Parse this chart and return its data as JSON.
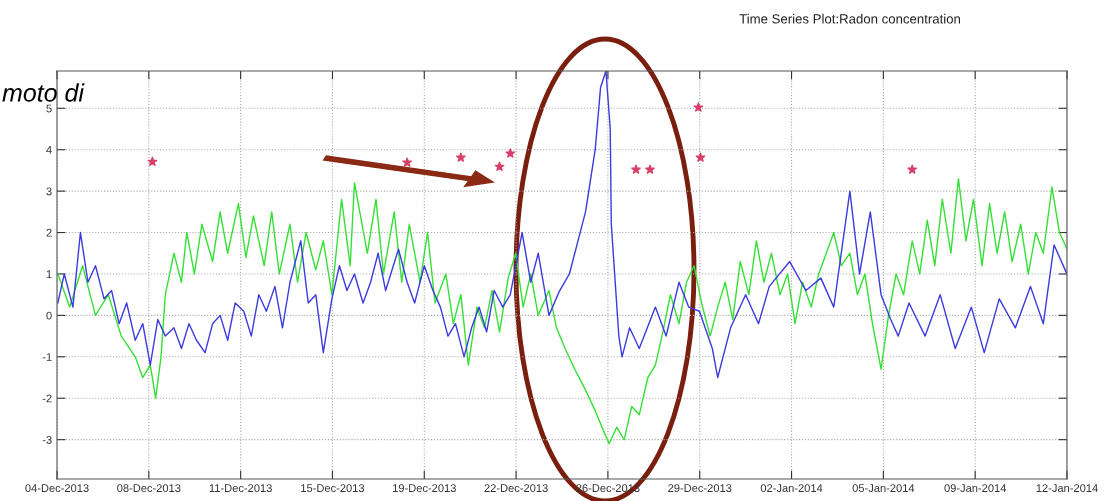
{
  "chart_data": {
    "type": "line",
    "title": "Time Series Plot:Radon concentration",
    "annotations": [
      "moto di"
    ],
    "xlim": [
      "2013-12-04T19:12",
      "2014-01-12T23:02"
    ],
    "ylim": [
      -3.95,
      5.9
    ],
    "xticks": [
      {
        "value": "2013-12-04T19:12",
        "label": "04-Dec-2013"
      },
      {
        "value": "2013-12-08T08:38",
        "label": "08-Dec-2013"
      },
      {
        "value": "2013-12-11T22:05",
        "label": "11-Dec-2013"
      },
      {
        "value": "2013-12-15T11:31",
        "label": "15-Dec-2013"
      },
      {
        "value": "2013-12-19T00:58",
        "label": "19-Dec-2013"
      },
      {
        "value": "2013-12-22T14:24",
        "label": "22-Dec-2013"
      },
      {
        "value": "2013-12-26T03:50",
        "label": "26-Dec-2013"
      },
      {
        "value": "2013-12-29T17:17",
        "label": "29-Dec-2013"
      },
      {
        "value": "2014-01-02T06:43",
        "label": "02-Jan-2014"
      },
      {
        "value": "2014-01-05T20:10",
        "label": "05-Jan-2014"
      },
      {
        "value": "2014-01-09T09:36",
        "label": "09-Jan-2014"
      },
      {
        "value": "2014-01-12T23:02",
        "label": "12-Jan-2014"
      }
    ],
    "yticks": [
      -3,
      -2,
      -1,
      0,
      1,
      2,
      3,
      4,
      5
    ],
    "grid": true,
    "line_style": "solid",
    "series": [
      {
        "color": "#33e033",
        "marker": "none",
        "x": [
          "2013-12-04T20:00",
          "2013-12-05T07:00",
          "2013-12-05T19:00",
          "2013-12-06T07:00",
          "2013-12-06T19:00",
          "2013-12-07T07:00",
          "2013-12-07T20:00",
          "2013-12-08T03:00",
          "2013-12-08T10:00",
          "2013-12-08T15:00",
          "2013-12-08T20:00",
          "2013-12-09T00:00",
          "2013-12-09T08:00",
          "2013-12-09T15:00",
          "2013-12-09T20:00",
          "2013-12-10T03:00",
          "2013-12-10T10:00",
          "2013-12-10T20:00",
          "2013-12-11T03:00",
          "2013-12-11T10:00",
          "2013-12-11T20:00",
          "2013-12-12T03:00",
          "2013-12-12T10:00",
          "2013-12-12T20:00",
          "2013-12-13T03:00",
          "2013-12-13T10:00",
          "2013-12-13T20:00",
          "2013-12-14T03:00",
          "2013-12-14T11:00",
          "2013-12-14T20:00",
          "2013-12-15T03:00",
          "2013-12-15T11:00",
          "2013-12-15T20:00",
          "2013-12-16T04:00",
          "2013-12-16T08:00",
          "2013-12-16T20:00",
          "2013-12-17T04:00",
          "2013-12-17T11:00",
          "2013-12-17T21:00",
          "2013-12-18T04:00",
          "2013-12-18T11:00",
          "2013-12-18T21:00",
          "2013-12-19T04:00",
          "2013-12-19T11:00",
          "2013-12-19T21:00",
          "2013-12-20T04:00",
          "2013-12-20T11:00",
          "2013-12-20T18:00",
          "2013-12-21T02:00",
          "2013-12-21T09:00",
          "2013-12-21T16:00",
          "2013-12-21T23:00",
          "2013-12-22T07:00",
          "2013-12-22T14:00",
          "2013-12-22T21:00",
          "2013-12-23T04:00",
          "2013-12-23T11:00",
          "2013-12-23T21:00",
          "2013-12-24T04:00",
          "2013-12-24T12:00",
          "2013-12-24T21:00",
          "2013-12-25T07:00",
          "2013-12-25T16:00",
          "2013-12-26T00:00",
          "2013-12-26T05:00",
          "2013-12-26T12:00",
          "2013-12-26T19:00",
          "2013-12-27T02:00",
          "2013-12-27T09:00",
          "2013-12-27T17:00",
          "2013-12-28T00:00",
          "2013-12-28T07:00",
          "2013-12-28T14:00",
          "2013-12-28T22:00",
          "2013-12-29T05:00",
          "2013-12-29T12:00",
          "2013-12-29T19:00",
          "2013-12-30T03:00",
          "2013-12-30T10:00",
          "2013-12-30T17:00",
          "2013-12-31T00:00",
          "2013-12-31T07:00",
          "2013-12-31T15:00",
          "2013-12-31T22:00",
          "2014-01-01T05:00",
          "2014-01-01T12:00",
          "2014-01-01T20:00",
          "2014-01-02T03:00",
          "2014-01-02T10:00",
          "2014-01-02T17:00",
          "2014-01-03T01:00",
          "2014-01-03T08:00",
          "2014-01-03T15:00",
          "2014-01-03T22:00",
          "2014-01-04T05:00",
          "2014-01-04T13:00",
          "2014-01-04T20:00",
          "2014-01-05T03:00",
          "2014-01-05T10:00",
          "2014-01-05T18:00",
          "2014-01-06T01:00",
          "2014-01-06T08:00",
          "2014-01-06T15:00",
          "2014-01-06T23:00",
          "2014-01-07T06:00",
          "2014-01-07T13:00",
          "2014-01-07T20:00",
          "2014-01-08T03:00",
          "2014-01-08T11:00",
          "2014-01-08T18:00",
          "2014-01-09T01:00",
          "2014-01-09T08:00",
          "2014-01-09T16:00",
          "2014-01-09T23:00",
          "2014-01-10T06:00",
          "2014-01-10T13:00",
          "2014-01-10T20:00",
          "2014-01-11T04:00",
          "2014-01-11T11:00",
          "2014-01-11T18:00",
          "2014-01-12T01:00",
          "2014-01-12T09:00",
          "2014-01-12T16:00",
          "2014-01-12T23:00"
        ],
        "values": [
          1.0,
          0.2,
          1.2,
          0.0,
          0.5,
          -0.5,
          -1.0,
          -1.5,
          -1.2,
          -2.0,
          -1.0,
          0.5,
          1.5,
          0.8,
          2.0,
          1.0,
          2.2,
          1.3,
          2.5,
          1.5,
          2.7,
          1.4,
          2.4,
          1.2,
          2.5,
          1.0,
          2.2,
          0.8,
          2.0,
          1.1,
          1.8,
          0.5,
          2.8,
          1.2,
          3.2,
          1.5,
          2.8,
          1.0,
          2.5,
          0.8,
          2.2,
          0.8,
          2.0,
          0.3,
          1.0,
          -0.2,
          0.5,
          -1.2,
          0.2,
          -0.3,
          0.6,
          -0.4,
          0.9,
          1.5,
          0.2,
          1.0,
          0.0,
          0.6,
          -0.3,
          -0.8,
          -1.3,
          -1.8,
          -2.3,
          -2.8,
          -3.1,
          -2.7,
          -3.0,
          -2.2,
          -2.4,
          -1.5,
          -1.2,
          -0.4,
          0.5,
          -0.2,
          0.8,
          1.2,
          0.3,
          -0.5,
          0.2,
          0.8,
          -0.1,
          1.3,
          0.5,
          1.8,
          0.8,
          1.5,
          0.5,
          1.0,
          -0.2,
          0.8,
          0.2,
          1.0,
          1.5,
          2.0,
          1.2,
          1.5,
          0.5,
          1.0,
          -0.2,
          -1.3,
          0.0,
          1.0,
          0.5,
          1.8,
          1.0,
          2.3,
          1.2,
          2.8,
          1.5,
          3.3,
          1.8,
          2.8,
          1.2,
          2.7,
          1.5,
          2.5,
          1.3,
          2.2,
          1.0,
          2.0,
          1.5,
          3.1,
          2.0,
          1.6
        ]
      },
      {
        "color": "#3a3ae0",
        "marker": "none",
        "x": [
          "2013-12-04T20:00",
          "2013-12-05T02:00",
          "2013-12-05T10:00",
          "2013-12-05T17:00",
          "2013-12-06T00:00",
          "2013-12-06T07:00",
          "2013-12-06T15:00",
          "2013-12-06T22:00",
          "2013-12-07T05:00",
          "2013-12-07T12:00",
          "2013-12-07T20:00",
          "2013-12-08T03:00",
          "2013-12-08T10:00",
          "2013-12-08T17:00",
          "2013-12-09T00:00",
          "2013-12-09T08:00",
          "2013-12-09T15:00",
          "2013-12-09T22:00",
          "2013-12-10T05:00",
          "2013-12-10T13:00",
          "2013-12-10T20:00",
          "2013-12-11T03:00",
          "2013-12-11T10:00",
          "2013-12-11T17:00",
          "2013-12-12T01:00",
          "2013-12-12T08:00",
          "2013-12-12T15:00",
          "2013-12-12T22:00",
          "2013-12-13T06:00",
          "2013-12-13T13:00",
          "2013-12-13T20:00",
          "2013-12-14T06:00",
          "2013-12-14T13:00",
          "2013-12-14T20:00",
          "2013-12-15T03:00",
          "2013-12-15T11:00",
          "2013-12-15T18:00",
          "2013-12-16T01:00",
          "2013-12-16T08:00",
          "2013-12-16T16:00",
          "2013-12-16T23:00",
          "2013-12-17T06:00",
          "2013-12-17T13:00",
          "2013-12-18T01:00",
          "2013-12-18T09:00",
          "2013-12-18T16:00",
          "2013-12-19T01:00",
          "2013-12-19T09:00",
          "2013-12-19T16:00",
          "2013-12-19T23:00",
          "2013-12-20T06:00",
          "2013-12-20T14:00",
          "2013-12-20T21:00",
          "2013-12-21T04:00",
          "2013-12-21T11:00",
          "2013-12-21T18:00",
          "2013-12-22T02:00",
          "2013-12-22T09:00",
          "2013-12-22T20:00",
          "2013-12-23T04:00",
          "2013-12-23T11:00",
          "2013-12-23T21:00",
          "2013-12-24T07:00",
          "2013-12-24T16:00",
          "2013-12-25T00:00",
          "2013-12-25T07:00",
          "2013-12-25T16:00",
          "2013-12-25T21:00",
          "2013-12-26T02:00",
          "2013-12-26T06:00",
          "2013-12-26T07:00",
          "2013-12-26T14:00",
          "2013-12-26T17:00",
          "2013-12-27T00:00",
          "2013-12-27T09:00",
          "2013-12-28T00:00",
          "2013-12-28T10:00",
          "2013-12-28T22:00",
          "2013-12-29T07:00",
          "2013-12-29T17:00",
          "2013-12-30T05:00",
          "2013-12-30T10:00",
          "2013-12-30T22:00",
          "2013-12-31T12:00",
          "2014-01-01T00:00",
          "2014-01-01T10:00",
          "2014-01-02T05:00",
          "2014-01-02T20:00",
          "2014-01-03T10:00",
          "2014-01-03T22:00",
          "2014-01-04T13:00",
          "2014-01-04T22:00",
          "2014-01-05T08:00",
          "2014-01-05T18:00",
          "2014-01-06T03:00",
          "2014-01-06T10:00",
          "2014-01-06T20:00",
          "2014-01-07T11:00",
          "2014-01-08T01:00",
          "2014-01-08T15:00",
          "2014-01-09T06:00",
          "2014-01-09T18:00",
          "2014-01-10T08:00",
          "2014-01-10T23:00",
          "2014-01-11T13:00",
          "2014-01-12T01:00",
          "2014-01-12T11:00",
          "2014-01-12T23:00"
        ],
        "values": [
          0.3,
          1.0,
          0.2,
          2.0,
          0.8,
          1.2,
          0.4,
          0.6,
          -0.2,
          0.3,
          -0.6,
          -0.2,
          -1.2,
          -0.1,
          -0.5,
          -0.3,
          -0.8,
          -0.2,
          -0.6,
          -0.9,
          -0.2,
          0.0,
          -0.6,
          0.3,
          0.1,
          -0.5,
          0.5,
          0.1,
          0.7,
          -0.3,
          0.8,
          1.8,
          0.3,
          0.5,
          -0.9,
          0.4,
          1.2,
          0.6,
          1.0,
          0.3,
          0.8,
          1.5,
          0.6,
          1.6,
          0.8,
          0.3,
          1.2,
          0.6,
          0.2,
          -0.5,
          -0.2,
          -1.0,
          -0.3,
          0.2,
          -0.4,
          0.6,
          0.2,
          0.5,
          2.0,
          0.8,
          1.5,
          0.0,
          0.6,
          1.0,
          1.8,
          2.5,
          4.0,
          5.5,
          5.9,
          4.5,
          2.2,
          -0.5,
          -1.0,
          -0.3,
          -0.8,
          0.2,
          -0.5,
          0.8,
          0.2,
          0.1,
          -0.8,
          -1.5,
          -0.3,
          0.5,
          -0.2,
          0.7,
          1.3,
          0.6,
          0.9,
          0.2,
          3.0,
          1.0,
          2.5,
          0.5,
          -0.1,
          -0.5,
          0.3,
          -0.5,
          0.5,
          -0.8,
          0.2,
          -0.9,
          0.4,
          -0.3,
          0.7,
          -0.2,
          1.7,
          1.0
        ]
      },
      {
        "type": "scatter",
        "color": "#d6406a",
        "marker": "star",
        "x": [
          "2013-12-08T12:00",
          "2013-12-18T09:00",
          "2013-12-20T11:00",
          "2013-12-21T23:00",
          "2013-12-22T09:00",
          "2013-12-27T06:00",
          "2013-12-27T19:00",
          "2013-12-29T16:00",
          "2013-12-29T18:00",
          "2014-01-06T23:00"
        ],
        "values": [
          3.71,
          3.69,
          3.81,
          3.59,
          3.91,
          3.52,
          3.52,
          5.02,
          3.81,
          3.52
        ]
      }
    ]
  }
}
